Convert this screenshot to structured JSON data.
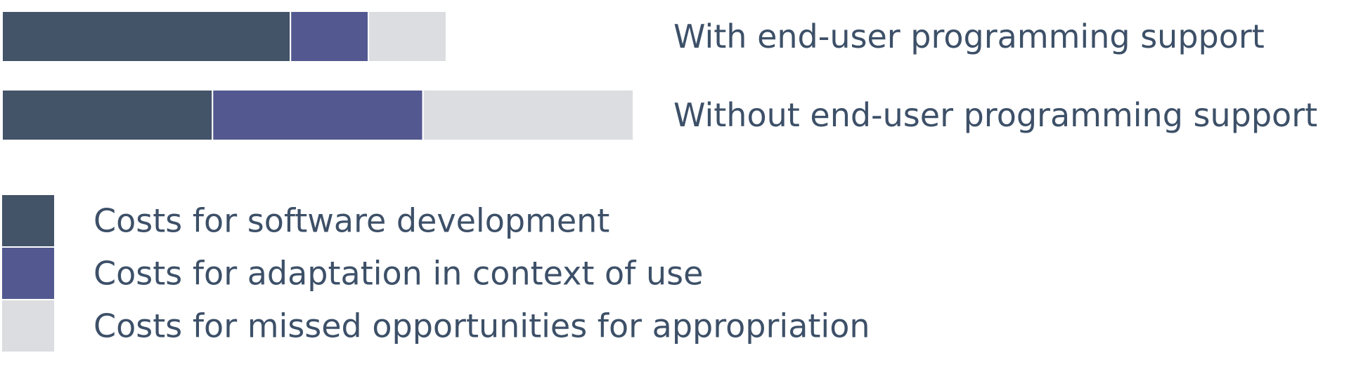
{
  "chart_data": {
    "type": "bar",
    "orientation": "horizontal",
    "stacked": true,
    "categories": [
      "With end-user programming support",
      "Without end-user programming support"
    ],
    "series": [
      {
        "name": "Costs for software development",
        "color": "#435368",
        "values": [
          37,
          27
        ]
      },
      {
        "name": "Costs for adaptation in context of use",
        "color": "#535990",
        "values": [
          10,
          27
        ]
      },
      {
        "name": "Costs for missed opportunities for appropriation",
        "color": "#dcdde1",
        "values": [
          10,
          27
        ]
      }
    ],
    "xlim": [
      0,
      81
    ],
    "axes_visible": false,
    "grid": false,
    "legend_position": "bottom-left",
    "label_color": "#3d5068"
  }
}
